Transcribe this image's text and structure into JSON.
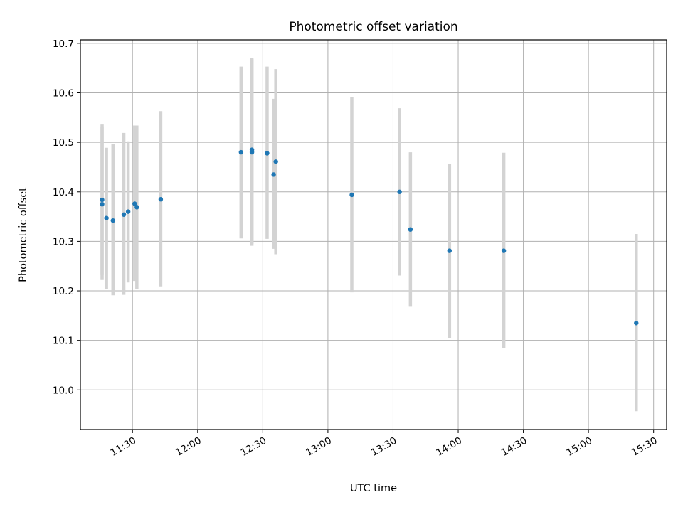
{
  "chart_data": {
    "type": "scatter",
    "title": "Photometric offset variation",
    "xlabel": "UTC time",
    "ylabel": "Photometric offset",
    "grid": true,
    "xlim": [
      "11:06",
      "15:36"
    ],
    "ylim": [
      9.92,
      10.707
    ],
    "x_ticks": [
      "11:30",
      "12:00",
      "12:30",
      "13:00",
      "13:30",
      "14:00",
      "14:30",
      "15:00",
      "15:30"
    ],
    "y_ticks": [
      "10.0",
      "10.1",
      "10.2",
      "10.3",
      "10.4",
      "10.5",
      "10.6",
      "10.7"
    ],
    "colors": {
      "points": "#1f77b4",
      "error_bars": "#d3d3d3",
      "grid": "#b0b0b0"
    },
    "series": [
      {
        "points": [
          {
            "x": "11:16",
            "y": 10.375,
            "ylow": 10.222,
            "yhigh": 10.532
          },
          {
            "x": "11:16",
            "y": 10.384,
            "ylow": 10.232,
            "yhigh": 10.536
          },
          {
            "x": "11:18",
            "y": 10.347,
            "ylow": 10.204,
            "yhigh": 10.489
          },
          {
            "x": "11:21",
            "y": 10.342,
            "ylow": 10.191,
            "yhigh": 10.497
          },
          {
            "x": "11:26",
            "y": 10.354,
            "ylow": 10.192,
            "yhigh": 10.519
          },
          {
            "x": "11:28",
            "y": 10.36,
            "ylow": 10.217,
            "yhigh": 10.502
          },
          {
            "x": "11:31",
            "y": 10.376,
            "ylow": 10.22,
            "yhigh": 10.534
          },
          {
            "x": "11:32",
            "y": 10.369,
            "ylow": 10.204,
            "yhigh": 10.534
          },
          {
            "x": "11:43",
            "y": 10.385,
            "ylow": 10.209,
            "yhigh": 10.563
          },
          {
            "x": "12:20",
            "y": 10.48,
            "ylow": 10.306,
            "yhigh": 10.653
          },
          {
            "x": "12:25",
            "y": 10.48,
            "ylow": 10.291,
            "yhigh": 10.671
          },
          {
            "x": "12:25",
            "y": 10.485,
            "ylow": 10.295,
            "yhigh": 10.668
          },
          {
            "x": "12:32",
            "y": 10.478,
            "ylow": 10.305,
            "yhigh": 10.653
          },
          {
            "x": "12:35",
            "y": 10.435,
            "ylow": 10.285,
            "yhigh": 10.588
          },
          {
            "x": "12:36",
            "y": 10.461,
            "ylow": 10.274,
            "yhigh": 10.648
          },
          {
            "x": "13:11",
            "y": 10.394,
            "ylow": 10.197,
            "yhigh": 10.591
          },
          {
            "x": "13:33",
            "y": 10.4,
            "ylow": 10.231,
            "yhigh": 10.569
          },
          {
            "x": "13:38",
            "y": 10.324,
            "ylow": 10.168,
            "yhigh": 10.48
          },
          {
            "x": "13:56",
            "y": 10.281,
            "ylow": 10.105,
            "yhigh": 10.457
          },
          {
            "x": "14:21",
            "y": 10.281,
            "ylow": 10.085,
            "yhigh": 10.479
          },
          {
            "x": "15:22",
            "y": 10.135,
            "ylow": 9.957,
            "yhigh": 10.315
          }
        ]
      }
    ]
  }
}
